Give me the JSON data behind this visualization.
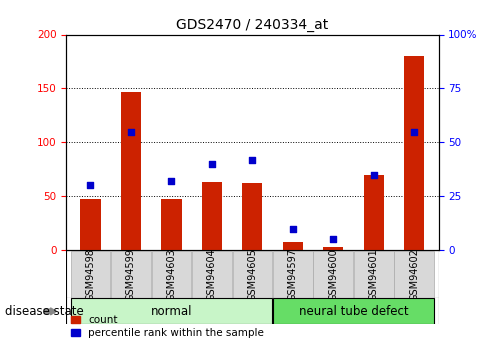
{
  "title": "GDS2470 / 240334_at",
  "samples": [
    "GSM94598",
    "GSM94599",
    "GSM94603",
    "GSM94604",
    "GSM94605",
    "GSM94597",
    "GSM94600",
    "GSM94601",
    "GSM94602"
  ],
  "counts": [
    47,
    147,
    47,
    63,
    62,
    8,
    3,
    70,
    180
  ],
  "percentiles": [
    30,
    55,
    32,
    40,
    42,
    10,
    5,
    35,
    55
  ],
  "groups": [
    {
      "label": "normal",
      "start": 0,
      "end": 4,
      "color": "#c8f5c8"
    },
    {
      "label": "neural tube defect",
      "start": 5,
      "end": 8,
      "color": "#66dd66"
    }
  ],
  "ylim_left": [
    0,
    200
  ],
  "ylim_right": [
    0,
    100
  ],
  "yticks_left": [
    0,
    50,
    100,
    150,
    200
  ],
  "yticks_right": [
    0,
    25,
    50,
    75,
    100
  ],
  "bar_color": "#cc2200",
  "dot_color": "#0000cc",
  "bar_width": 0.5,
  "legend_count_label": "count",
  "legend_pct_label": "percentile rank within the sample",
  "disease_state_label": "disease state",
  "title_fontsize": 10,
  "tick_fontsize": 7.5,
  "label_fontsize": 8.5,
  "legend_fontsize": 7.5,
  "sample_fontsize": 7
}
